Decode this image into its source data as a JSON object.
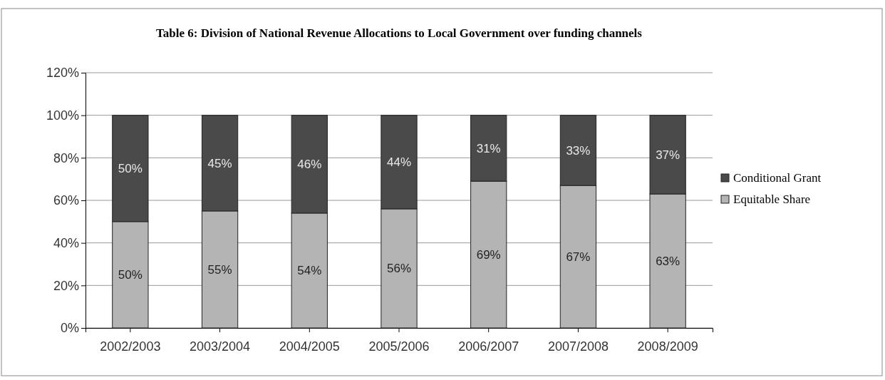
{
  "chart_data": {
    "type": "bar",
    "title": "Table 6: Division of National Revenue Allocations to Local Government over funding channels",
    "categories": [
      "2002/2003",
      "2003/2004",
      "2004/2005",
      "2005/2006",
      "2006/2007",
      "2007/2008",
      "2008/2009"
    ],
    "series": [
      {
        "name": "Equitable Share",
        "color": "#b4b4b4",
        "values": [
          50,
          55,
          54,
          56,
          69,
          67,
          63
        ],
        "value_labels": [
          "50%",
          "55%",
          "54%",
          "56%",
          "69%",
          "67%",
          "63%"
        ]
      },
      {
        "name": "Conditional Grant",
        "color": "#4a4a4a",
        "values": [
          50,
          45,
          46,
          44,
          31,
          33,
          37
        ],
        "value_labels": [
          "50%",
          "45%",
          "46%",
          "44%",
          "31%",
          "33%",
          "37%"
        ]
      }
    ],
    "stacked": true,
    "ylim": [
      0,
      120
    ],
    "yticks": [
      {
        "value": 0,
        "label": "0%"
      },
      {
        "value": 20,
        "label": "20%"
      },
      {
        "value": 40,
        "label": "40%"
      },
      {
        "value": 60,
        "label": "60%"
      },
      {
        "value": 80,
        "label": "80%"
      },
      {
        "value": 100,
        "label": "100%"
      },
      {
        "value": 120,
        "label": "120%"
      }
    ],
    "grid": "y",
    "legend": "right"
  }
}
